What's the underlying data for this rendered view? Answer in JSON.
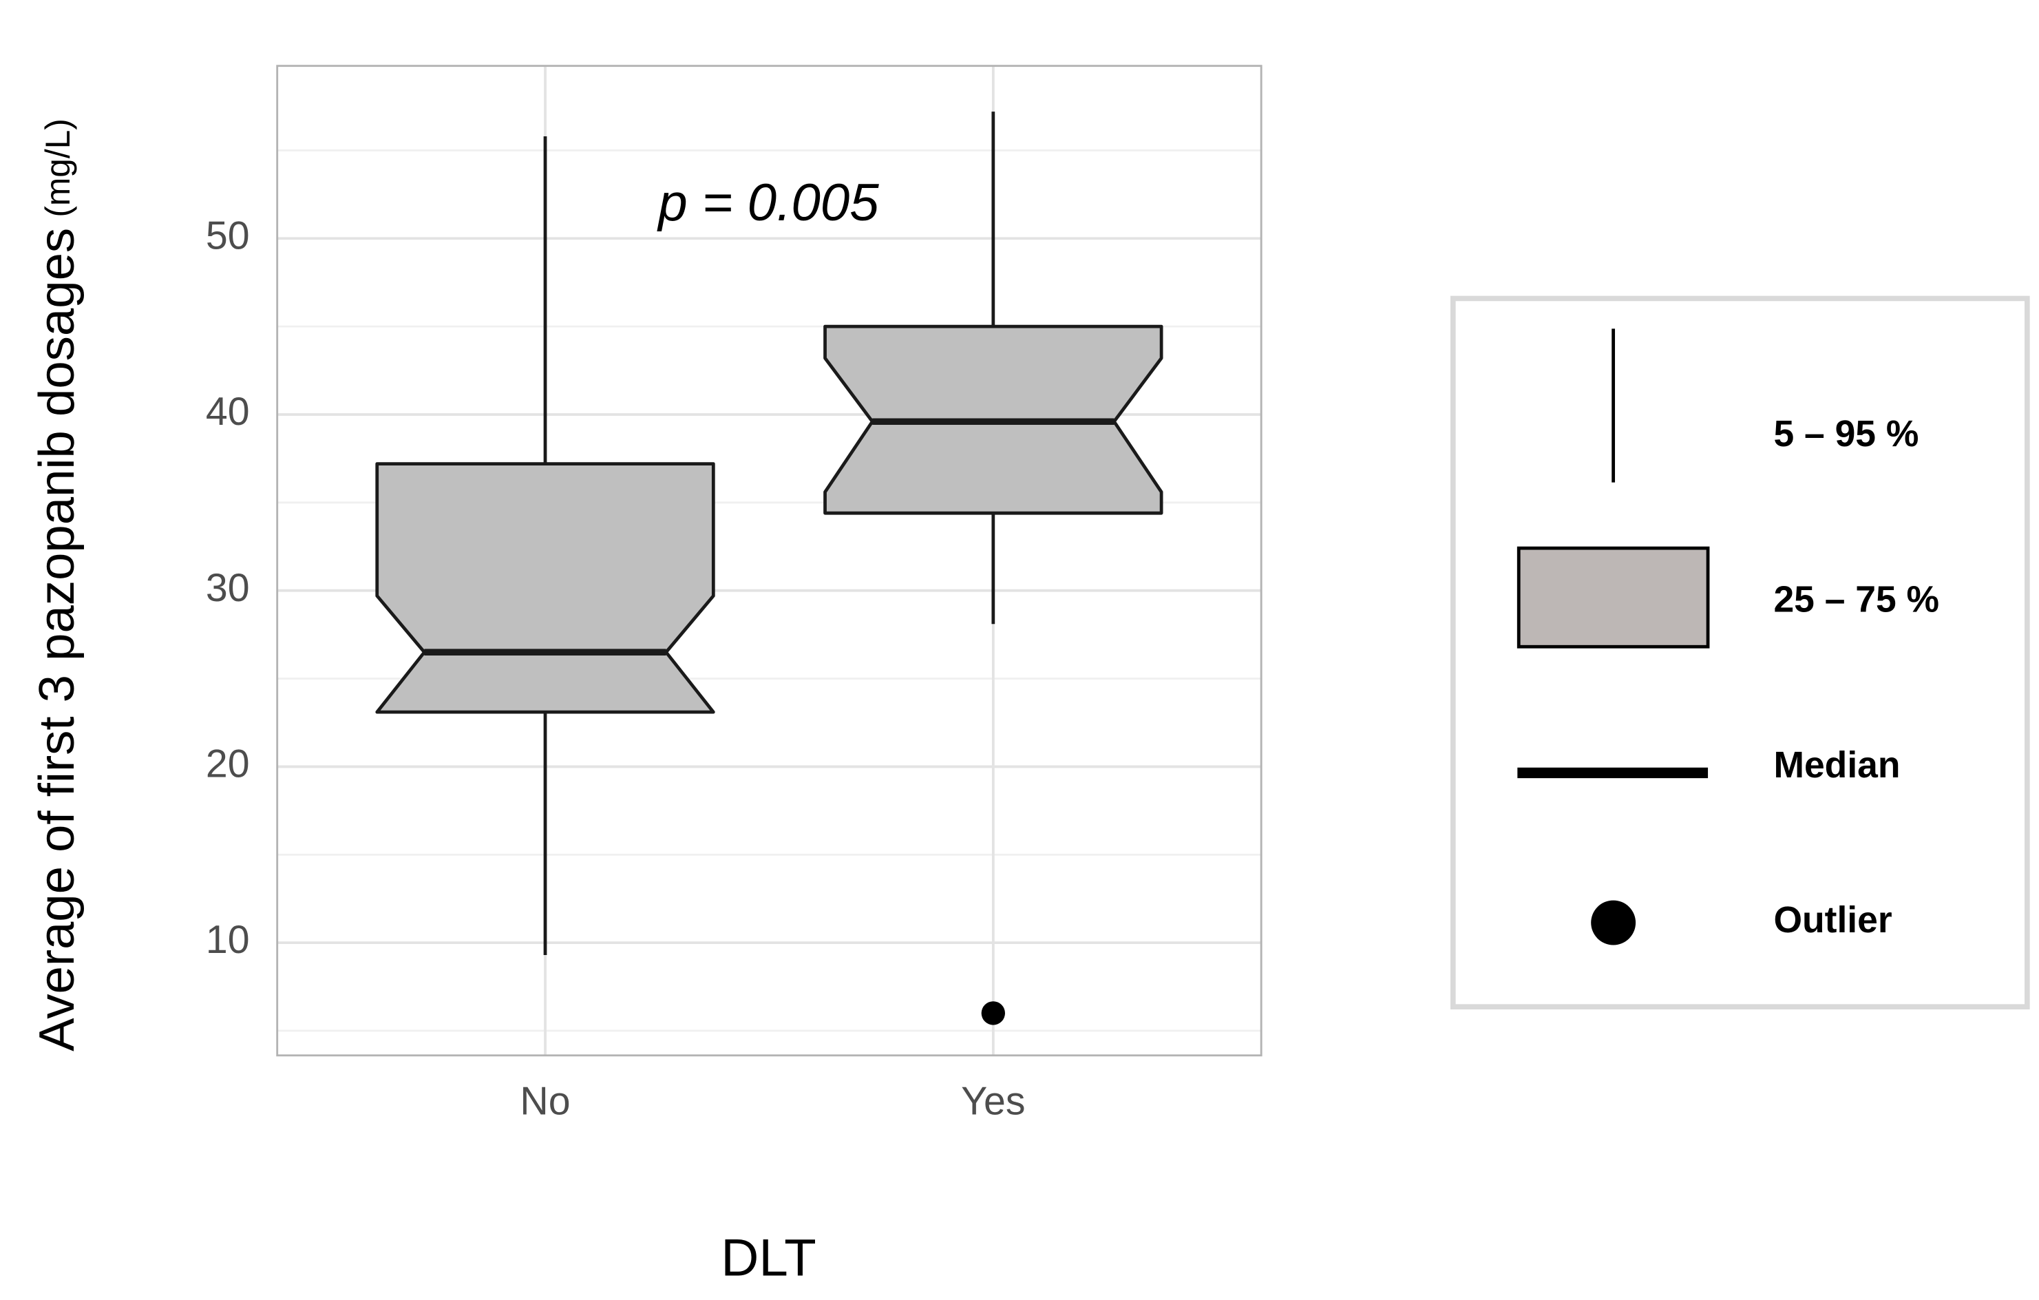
{
  "chart_data": {
    "type": "boxplot",
    "annotation": "p = 0.005",
    "x_label": "DLT",
    "y_label": "Average of first 3 pazopanib dosages",
    "y_label_unit": "(mg/L)",
    "categories": [
      "No",
      "Yes"
    ],
    "color": "#bfbfbf",
    "boxes": [
      {
        "whisker_low": 9.3,
        "q1": 23.1,
        "notch_low": 23.1,
        "median": 26.5,
        "notch_high": 29.7,
        "q3": 37.2,
        "whisker_high": 55.8,
        "outliers": []
      },
      {
        "whisker_low": 28.1,
        "q1": 34.4,
        "notch_low": 35.6,
        "median": 39.6,
        "notch_high": 43.2,
        "q3": 45.0,
        "whisker_high": 57.2,
        "outliers": [
          6.0
        ]
      }
    ],
    "ylim": [
      3.6,
      59.8
    ],
    "yticks": [
      10,
      20,
      30,
      40,
      50
    ],
    "minor_yticks": [
      5,
      15,
      25,
      35,
      45,
      55
    ],
    "grid": true,
    "legend": [
      "5 – 95 %",
      "25 – 75 %",
      "Median",
      "Outlier"
    ]
  }
}
